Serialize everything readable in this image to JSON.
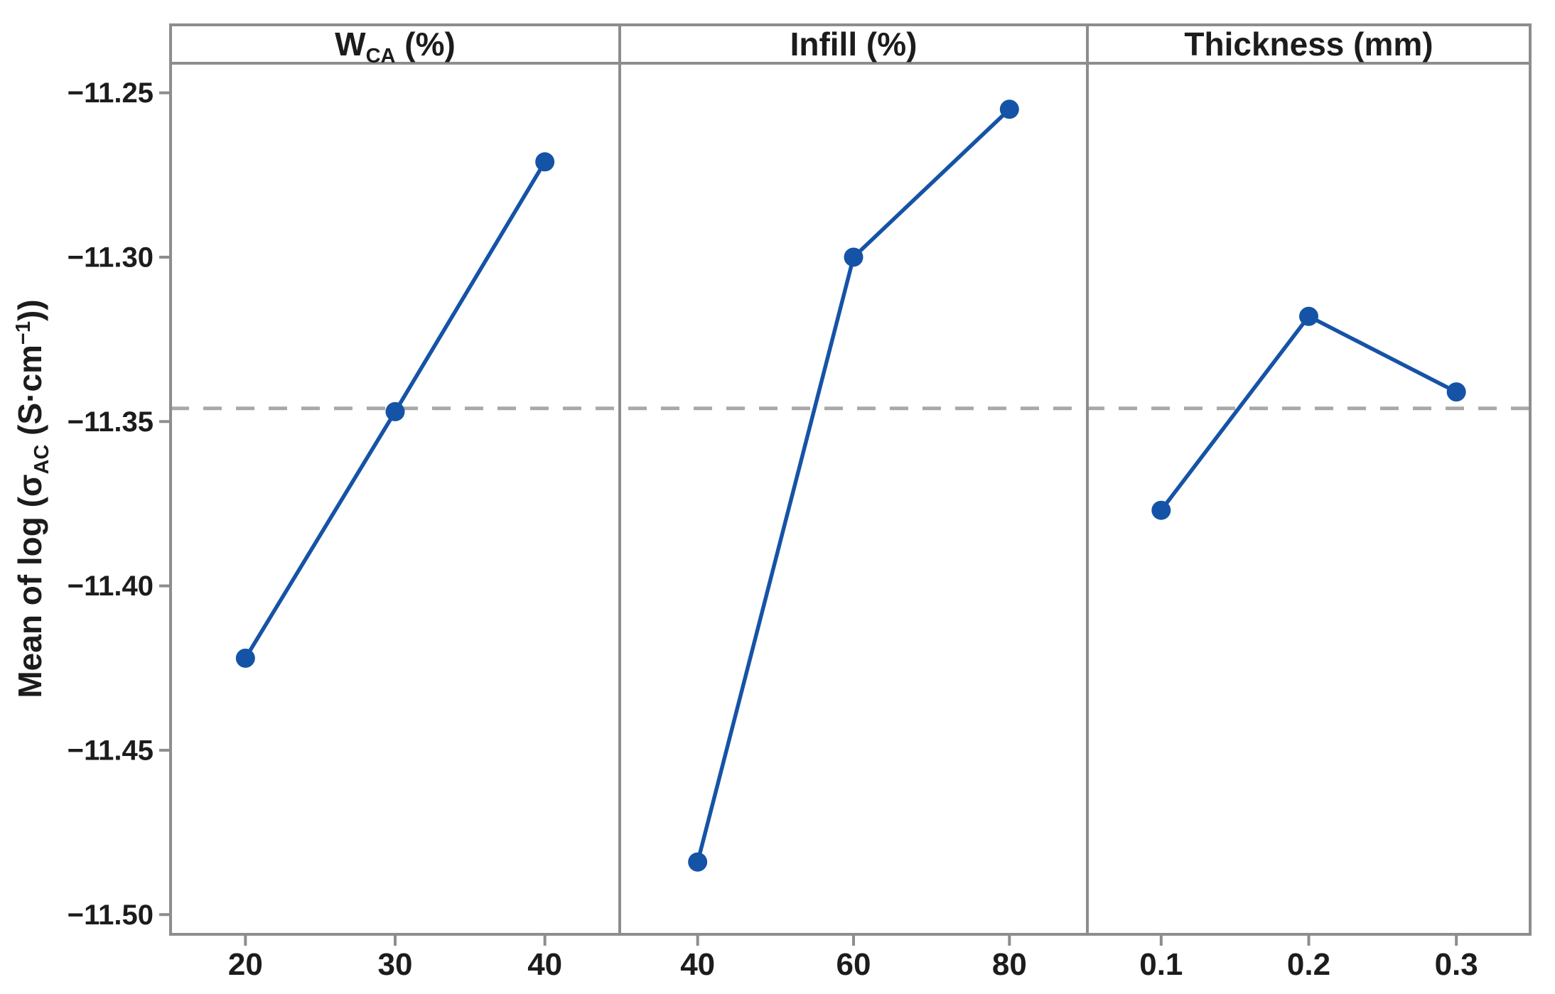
{
  "figure": {
    "description": "Main effects plot for mean of log AC conductivity versus three factors"
  },
  "chart_data": {
    "type": "line",
    "subtype": "main-effects-plot",
    "ylabel": "Mean of log (σAC (S·cm−1))",
    "ylabel_parts": [
      {
        "t": "Mean of log (σ",
        "style": "normal"
      },
      {
        "t": "AC",
        "style": "sub"
      },
      {
        "t": " (S·cm",
        "style": "normal"
      },
      {
        "t": "−1",
        "style": "sup"
      },
      {
        "t": "))",
        "style": "normal"
      }
    ],
    "ylim": [
      -11.506,
      -11.241
    ],
    "yticks": [
      {
        "v": -11.25,
        "label": "−11.25"
      },
      {
        "v": -11.3,
        "label": "−11.30"
      },
      {
        "v": -11.35,
        "label": "−11.35"
      },
      {
        "v": -11.4,
        "label": "−11.40"
      },
      {
        "v": -11.45,
        "label": "−11.45"
      },
      {
        "v": -11.5,
        "label": "−11.50"
      }
    ],
    "reference_line": -11.346,
    "grid": false,
    "legend": "none",
    "panels": [
      {
        "title": "WCA (%)",
        "title_parts": [
          {
            "t": "W",
            "style": "normal"
          },
          {
            "t": "CA",
            "style": "sub"
          },
          {
            "t": " (%)",
            "style": "normal"
          }
        ],
        "x_tick_labels": [
          "20",
          "30",
          "40"
        ],
        "x": [
          20,
          30,
          40
        ],
        "values": [
          -11.422,
          -11.347,
          -11.271
        ]
      },
      {
        "title": "Infill (%)",
        "title_parts": [
          {
            "t": "Infill (%)",
            "style": "normal"
          }
        ],
        "x_tick_labels": [
          "40",
          "60",
          "80"
        ],
        "x": [
          40,
          60,
          80
        ],
        "values": [
          -11.484,
          -11.3,
          -11.255
        ]
      },
      {
        "title": "Thickness (mm)",
        "title_parts": [
          {
            "t": "Thickness (mm)",
            "style": "normal"
          }
        ],
        "x_tick_labels": [
          "0.1",
          "0.2",
          "0.3"
        ],
        "x": [
          0.1,
          0.2,
          0.3
        ],
        "values": [
          -11.377,
          -11.318,
          -11.341
        ]
      }
    ],
    "colors": {
      "series": "#1553a6",
      "reference_line": "#a8a8a8",
      "border": "#8d8d8d",
      "text": "#1c1c1c",
      "background": "#ffffff"
    }
  }
}
